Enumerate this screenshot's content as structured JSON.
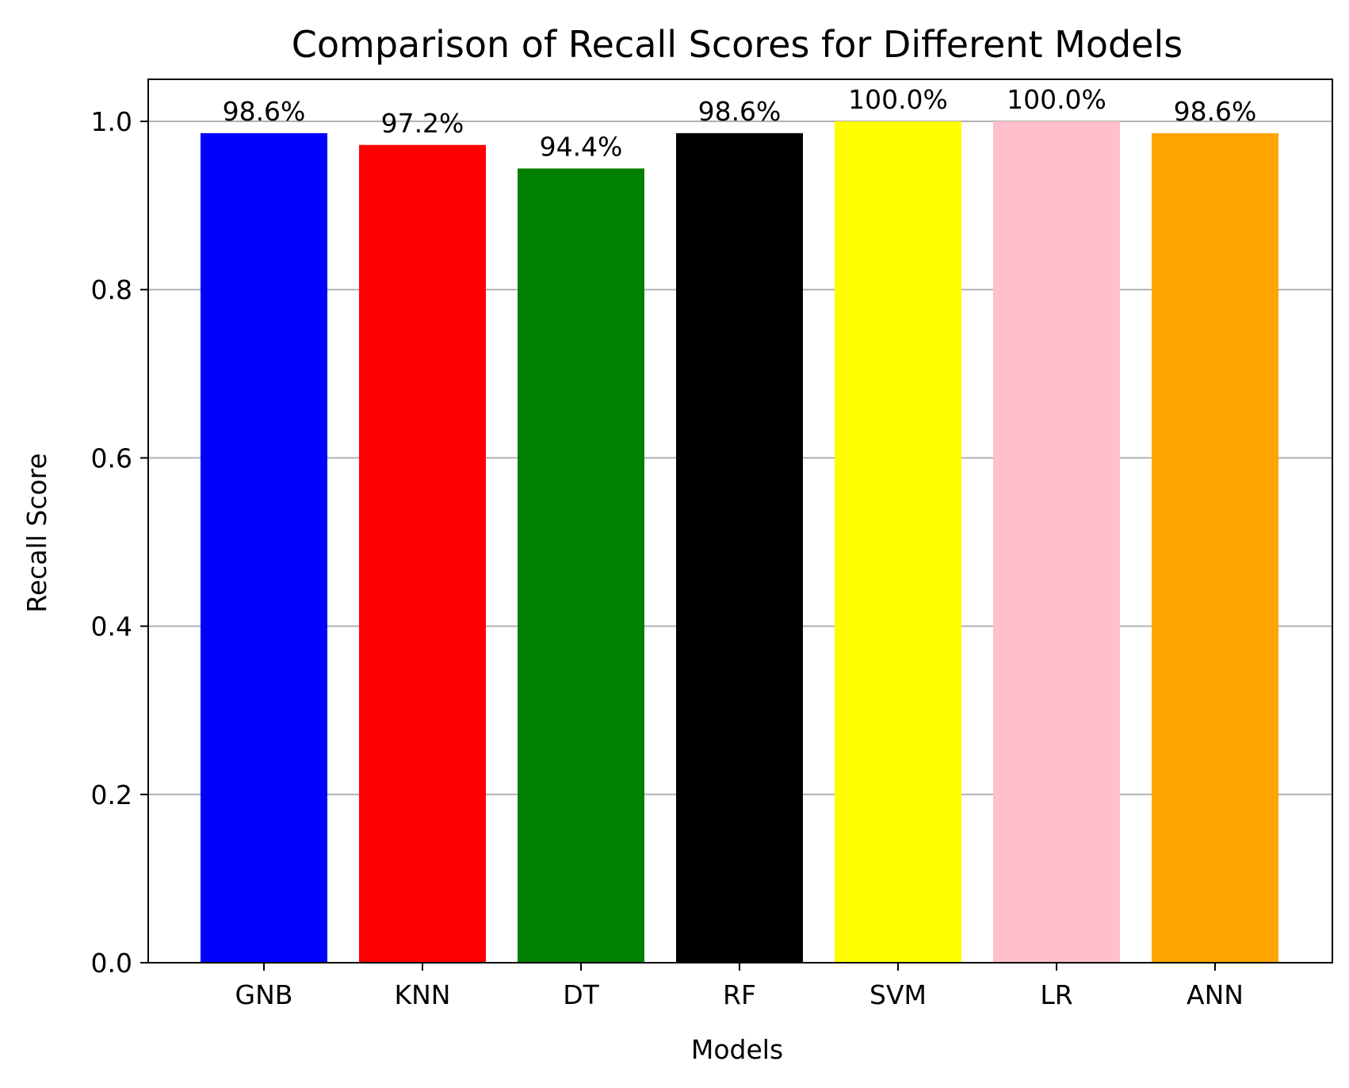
{
  "chart_data": {
    "type": "bar",
    "title": "Comparison of Recall Scores for Different Models",
    "xlabel": "Models",
    "ylabel": "Recall Score",
    "categories": [
      "GNB",
      "KNN",
      "DT",
      "RF",
      "SVM",
      "LR",
      "ANN"
    ],
    "values": [
      0.986,
      0.972,
      0.944,
      0.986,
      1.0,
      1.0,
      0.986
    ],
    "data_labels": [
      "98.6%",
      "97.2%",
      "94.4%",
      "98.6%",
      "100.0%",
      "100.0%",
      "98.6%"
    ],
    "colors": [
      "#0000ff",
      "#ff0000",
      "#008000",
      "#000000",
      "#ffff00",
      "#ffc0cb",
      "#ffa500"
    ],
    "ylim": [
      0,
      1.05
    ],
    "yticks": [
      0.0,
      0.2,
      0.4,
      0.6,
      0.8,
      1.0
    ],
    "ytick_labels": [
      "0.0",
      "0.2",
      "0.4",
      "0.6",
      "0.8",
      "1.0"
    ],
    "grid": "horizontal",
    "grid_color": "#b0b0b0",
    "legend": "none"
  }
}
